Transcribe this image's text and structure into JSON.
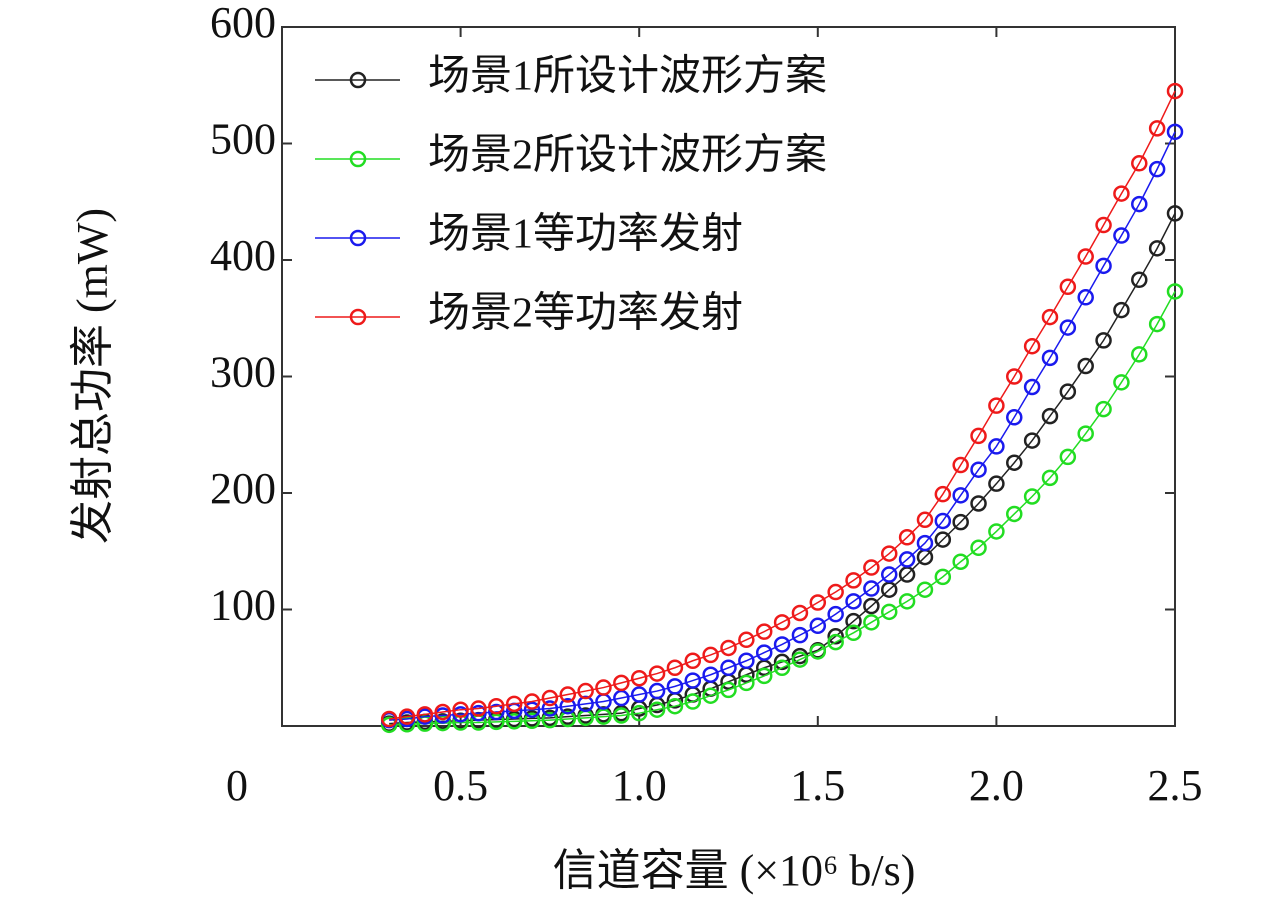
{
  "chart_data": {
    "type": "line",
    "x_label": "信道容量 (×10⁶ b/s)",
    "y_label": "发射总功率 (mW)",
    "xlim": [
      0,
      2.5
    ],
    "ylim": [
      0,
      600
    ],
    "xticks": [
      0.5,
      {
        "value": 1,
        "label": "1.0"
      },
      1.5,
      {
        "value": 2,
        "label": "2.0"
      },
      2.5
    ],
    "yticks": [
      0,
      100,
      200,
      300,
      400,
      500,
      600
    ],
    "legend": "upper left",
    "x": [
      0.3,
      0.35,
      0.4,
      0.45,
      0.5,
      0.55,
      0.6,
      0.65,
      0.7,
      0.75,
      0.8,
      0.85,
      0.9,
      0.95,
      1.0,
      1.05,
      1.1,
      1.15,
      1.2,
      1.25,
      1.3,
      1.35,
      1.4,
      1.45,
      1.5,
      1.55,
      1.6,
      1.65,
      1.7,
      1.75,
      1.8,
      1.85,
      1.9,
      1.95,
      2.0,
      2.05,
      2.1,
      2.15,
      2.2,
      2.25,
      2.3,
      2.35,
      2.4,
      2.45,
      2.5
    ],
    "series": [
      {
        "name": "场景1所设计波形方案",
        "color": "#222222",
        "values": [
          2,
          3,
          3.5,
          4,
          4.5,
          5,
          5.5,
          6,
          6.5,
          7,
          8,
          9,
          10,
          11,
          15,
          18,
          22,
          27,
          32,
          38,
          44,
          50,
          55,
          60,
          65,
          77,
          90,
          103,
          117,
          130,
          145,
          160,
          175,
          191,
          208,
          226,
          245,
          266,
          287,
          309,
          331,
          357,
          383,
          410,
          440
        ]
      },
      {
        "name": "场景2所设计波形方案",
        "color": "#22dd22",
        "values": [
          1,
          1.5,
          2,
          2.5,
          3,
          3,
          3.5,
          4,
          4.5,
          5,
          6,
          7,
          8,
          9,
          11,
          14,
          17,
          21,
          26,
          31,
          37,
          43,
          50,
          57,
          64,
          72,
          80,
          89,
          98,
          107,
          117,
          128,
          141,
          153,
          167,
          182,
          197,
          213,
          231,
          251,
          272,
          295,
          319,
          345,
          373
        ]
      },
      {
        "name": "场景1等功率发射",
        "color": "#1a1aee",
        "values": [
          5,
          6,
          8,
          9,
          10,
          11,
          12,
          13,
          14,
          15,
          17,
          19,
          21,
          24,
          27,
          30,
          34,
          39,
          44,
          50,
          56,
          63,
          70,
          78,
          86,
          96,
          107,
          118,
          130,
          143,
          157,
          176,
          198,
          220,
          240,
          265,
          291,
          316,
          342,
          368,
          395,
          421,
          448,
          478,
          510
        ]
      },
      {
        "name": "场景2等功率发射",
        "color": "#ee1a1a",
        "values": [
          6,
          8,
          10,
          12,
          14,
          15,
          17,
          19,
          21,
          24,
          27,
          30,
          33,
          37,
          41,
          45,
          50,
          56,
          61,
          67,
          74,
          81,
          89,
          97,
          106,
          115,
          125,
          136,
          148,
          162,
          177,
          199,
          224,
          249,
          275,
          300,
          326,
          351,
          377,
          403,
          430,
          457,
          483,
          513,
          545
        ]
      }
    ]
  }
}
